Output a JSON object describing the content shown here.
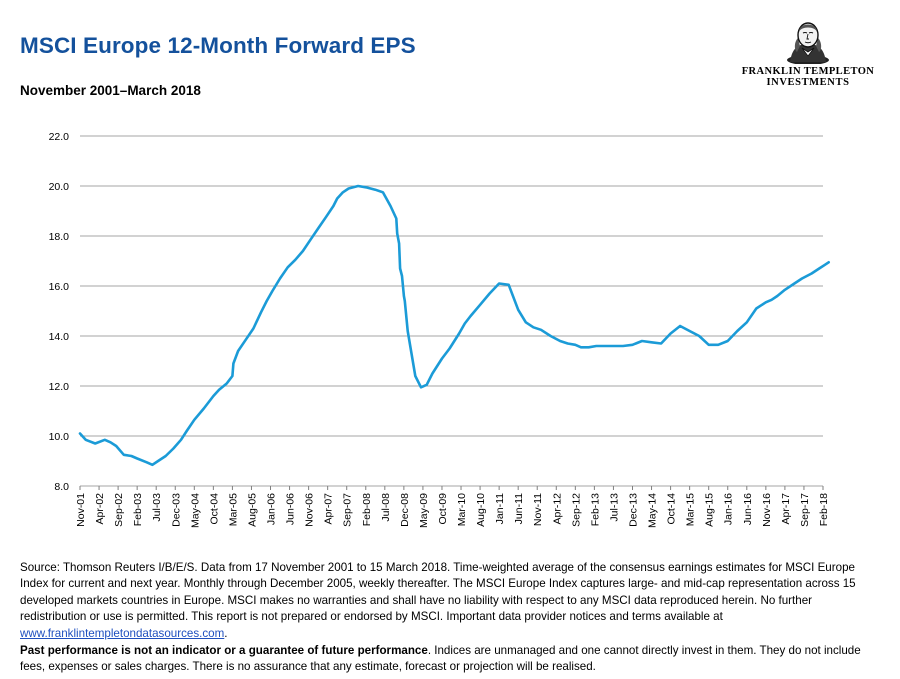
{
  "title": "MSCI Europe 12-Month Forward EPS",
  "subtitle": "November 2001–March 2018",
  "logo": {
    "icon": "benjamin-franklin-portrait-icon",
    "line1": "FRANKLIN TEMPLETON",
    "line2": "INVESTMENTS"
  },
  "colors": {
    "title": "#14519c",
    "line": "#1b9bd7",
    "grid": "#a6a6a6",
    "link": "#1f4fbf"
  },
  "chart_data": {
    "type": "line",
    "title": "",
    "xlabel": "",
    "ylabel": "",
    "ylim": [
      8.0,
      22.0
    ],
    "y_ticks": [
      "8.0",
      "10.0",
      "12.0",
      "14.0",
      "16.0",
      "18.0",
      "20.0",
      "22.0"
    ],
    "x_ticks": [
      "Nov-01",
      "Apr-02",
      "Sep-02",
      "Feb-03",
      "Jul-03",
      "Dec-03",
      "May-04",
      "Oct-04",
      "Mar-05",
      "Aug-05",
      "Jan-06",
      "Jun-06",
      "Nov-06",
      "Apr-07",
      "Sep-07",
      "Feb-08",
      "Jul-08",
      "Dec-08",
      "May-09",
      "Oct-09",
      "Mar-10",
      "Aug-10",
      "Jan-11",
      "Jun-11",
      "Nov-11",
      "Apr-12",
      "Sep-12",
      "Feb-13",
      "Jul-13",
      "Dec-13",
      "May-14",
      "Oct-14",
      "Mar-15",
      "Aug-15",
      "Jan-16",
      "Jun-16",
      "Nov-16",
      "Apr-17",
      "Sep-17",
      "Feb-18"
    ],
    "grid": "horizontal",
    "legend": "none",
    "series": [
      {
        "name": "",
        "x": [
          0.0,
          0.3,
          0.8,
          1.3,
          1.6,
          1.9,
          2.3,
          2.7,
          3.0,
          3.5,
          3.8,
          4.1,
          4.5,
          4.9,
          5.3,
          5.6,
          6.0,
          6.5,
          7.0,
          7.3,
          7.7,
          8.0,
          8.05,
          8.3,
          8.7,
          9.1,
          9.5,
          9.8,
          10.1,
          10.5,
          10.9,
          11.3,
          11.7,
          12.1,
          12.5,
          12.9,
          13.3,
          13.5,
          13.8,
          14.1,
          14.6,
          15.0,
          15.5,
          15.9,
          16.3,
          16.6,
          16.65,
          16.75,
          16.8,
          16.9,
          17.0,
          17.05,
          17.2,
          17.4,
          17.6,
          17.9,
          18.2,
          18.5,
          19.0,
          19.4,
          19.9,
          20.2,
          20.5,
          21.0,
          21.5,
          22.0,
          22.5,
          23.0,
          23.4,
          23.8,
          24.2,
          24.7,
          25.2,
          25.6,
          26.0,
          26.3,
          26.7,
          27.1,
          27.5,
          28.0,
          28.5,
          29.0,
          29.5,
          30.0,
          30.5,
          31.0,
          31.5,
          32.0,
          32.5,
          33.0,
          33.5,
          34.0,
          34.5,
          35.0,
          35.5,
          36.0,
          36.3,
          36.6,
          37.0,
          37.5,
          37.9,
          38.4,
          38.8,
          39.1,
          39.3
        ],
        "values": [
          10.1,
          9.85,
          9.7,
          9.85,
          9.75,
          9.6,
          9.25,
          9.2,
          9.1,
          8.95,
          8.85,
          9.0,
          9.2,
          9.5,
          9.85,
          10.2,
          10.65,
          11.1,
          11.6,
          11.85,
          12.1,
          12.4,
          12.9,
          13.4,
          13.85,
          14.3,
          14.95,
          15.4,
          15.8,
          16.3,
          16.75,
          17.05,
          17.4,
          17.85,
          18.3,
          18.75,
          19.2,
          19.5,
          19.75,
          19.9,
          20.0,
          19.95,
          19.85,
          19.75,
          19.2,
          18.7,
          18.1,
          17.7,
          16.7,
          16.4,
          15.6,
          15.4,
          14.2,
          13.3,
          12.4,
          11.95,
          12.05,
          12.5,
          13.1,
          13.5,
          14.1,
          14.5,
          14.8,
          15.25,
          15.7,
          16.1,
          16.05,
          15.05,
          14.55,
          14.35,
          14.25,
          14.0,
          13.8,
          13.7,
          13.65,
          13.55,
          13.55,
          13.6,
          13.6,
          13.6,
          13.6,
          13.65,
          13.8,
          13.75,
          13.7,
          14.1,
          14.4,
          14.2,
          14.0,
          13.65,
          13.65,
          13.8,
          14.2,
          14.55,
          15.1,
          15.35,
          15.45,
          15.6,
          15.85,
          16.1,
          16.3,
          16.5,
          16.7,
          16.85,
          16.95
        ]
      }
    ]
  },
  "footnote": {
    "source_text": "Source: Thomson Reuters I/B/E/S. Data from 17 November 2001 to 15 March 2018. Time-weighted average of the consensus earnings estimates for MSCI Europe Index for current and next year. Monthly through December 2005, weekly thereafter. The MSCI Europe Index captures large- and mid-cap representation across 15 developed markets countries in Europe. MSCI makes no warranties and shall have no liability with respect to any MSCI data reproduced herein. No further redistribution or use is permitted. This report is not prepared or endorsed by MSCI. Important data provider notices and terms available at ",
    "link_text": "www.franklintempletondatasources.com",
    "period": ".",
    "disclaimer_bold": "Past performance is not an indicator or a guarantee of future performance",
    "disclaimer_text": ". Indices are unmanaged and one cannot directly invest in them. They do not include fees, expenses or sales charges. There is no assurance that any estimate, forecast or projection will be realised."
  }
}
